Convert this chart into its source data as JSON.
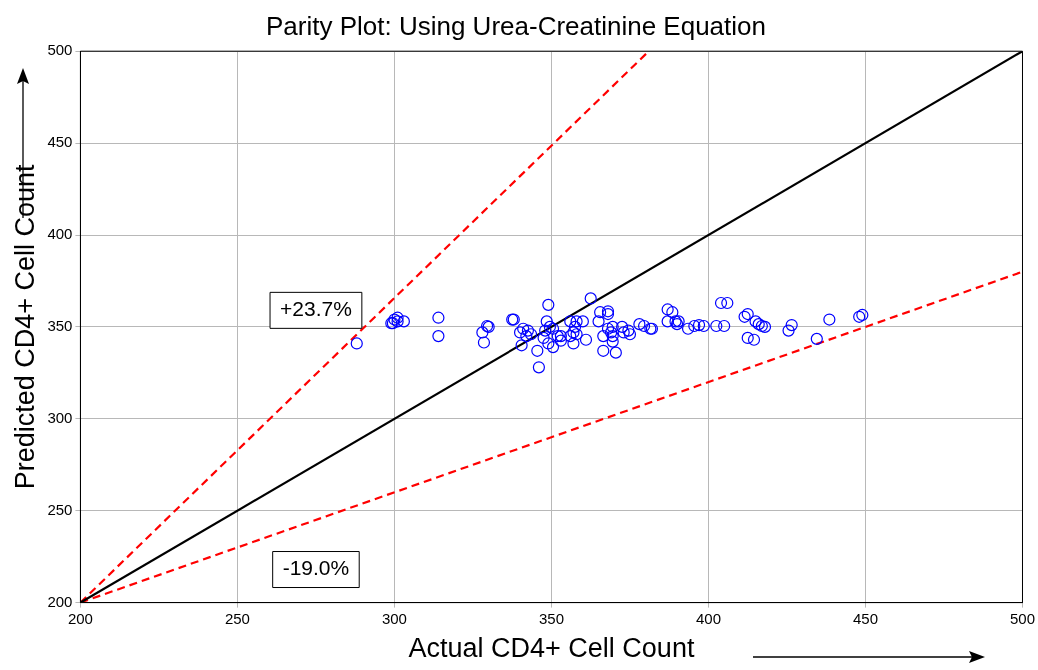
{
  "chart_data": {
    "type": "scatter",
    "title": "Parity Plot: Using Urea-Creatinine Equation",
    "xlabel": "Actual CD4+ Cell Count",
    "ylabel": "Predicted CD4+ Cell Count",
    "xlim": [
      200,
      500
    ],
    "ylim": [
      200,
      500
    ],
    "xticks": [
      200,
      250,
      300,
      350,
      400,
      450,
      500
    ],
    "yticks": [
      200,
      250,
      300,
      350,
      400,
      450,
      500
    ],
    "grid": true,
    "legend": false,
    "annotations": [
      "+23.7%",
      "-19.0%"
    ],
    "series": [
      {
        "type": "scatter",
        "color": "#0000ff",
        "marker": "circle",
        "x": [
          288,
          300,
          301,
          299.5,
          301,
          303,
          299,
          314,
          314,
          328,
          330,
          329.5,
          328.5,
          337.5,
          338,
          340,
          341,
          342.5,
          342,
          343.5,
          340.5,
          345.5,
          346,
          349,
          348.5,
          348,
          349.5,
          350.5,
          347.5,
          349,
          350.5,
          352,
          353,
          353,
          356,
          358,
          360,
          357.5,
          357,
          358,
          356,
          357,
          361,
          362.5,
          365.5,
          368,
          368,
          365,
          368,
          369.5,
          369,
          369.5,
          369.5,
          366.5,
          366.5,
          370.5,
          372.5,
          373,
          374.5,
          375,
          378,
          379.5,
          381.5,
          382,
          387,
          388.5,
          387,
          389.5,
          390.5,
          390,
          393.5,
          395.5,
          397,
          398.5,
          402.5,
          405,
          404,
          406,
          411.5,
          412.5,
          415,
          416,
          417,
          418,
          412.5,
          414.5,
          426.5,
          425.5,
          434.5,
          438.5,
          448,
          449
        ],
        "values": [
          341,
          354,
          355,
          352,
          353,
          353,
          352,
          355,
          345,
          347,
          350,
          350.5,
          341.5,
          354,
          354,
          347,
          349,
          348,
          345,
          346,
          340,
          337,
          328,
          362,
          353,
          348,
          350,
          349,
          344,
          341,
          339,
          345,
          345,
          342.5,
          353,
          353,
          353,
          350,
          347,
          346,
          345,
          341,
          343,
          365.5,
          358,
          358.5,
          357,
          353,
          349,
          350,
          347,
          345,
          342,
          345,
          337,
          336,
          350,
          347,
          348,
          346,
          351.5,
          350.5,
          349,
          349,
          359.5,
          358,
          353,
          353,
          353,
          351.5,
          349,
          350.5,
          351,
          350.5,
          350.5,
          350.5,
          363,
          363,
          355.5,
          357,
          353,
          351.5,
          350.5,
          350,
          344,
          343,
          351,
          348,
          343.5,
          354,
          355.5,
          356.5
        ]
      },
      {
        "type": "line",
        "color": "#000000",
        "line_style": "solid",
        "marker": "none",
        "x": [
          200,
          500
        ],
        "values": [
          200,
          500
        ]
      },
      {
        "type": "line",
        "color": "#ff0000",
        "line_style": "dashed",
        "marker": "none",
        "x": [
          200,
          381
        ],
        "values": [
          200,
          500
        ]
      },
      {
        "type": "line",
        "color": "#ff0000",
        "line_style": "dashed",
        "marker": "none",
        "x": [
          200,
          500
        ],
        "values": [
          200,
          380
        ]
      }
    ]
  }
}
